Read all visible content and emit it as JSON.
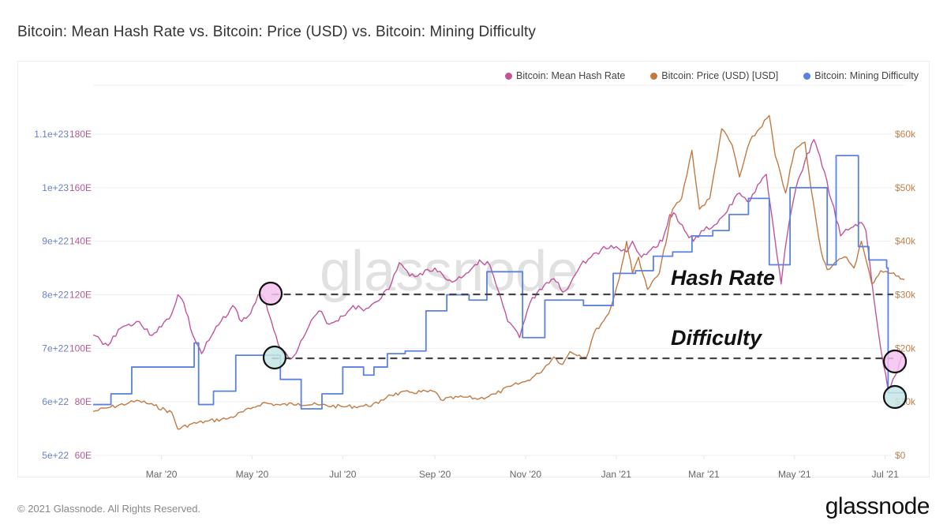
{
  "title": "Bitcoin: Mean Hash Rate vs. Bitcoin: Price (USD) vs. Bitcoin: Mining Difficulty",
  "legend": [
    {
      "label": "Bitcoin: Mean Hash Rate",
      "color": "#c2559a"
    },
    {
      "label": "Bitcoin: Price (USD) [USD]",
      "color": "#c27a43"
    },
    {
      "label": "Bitcoin: Mining Difficulty",
      "color": "#5a80e0"
    }
  ],
  "footer": "© 2021 Glassnode. All Rights Reserved.",
  "brand": "glassnode",
  "watermark": "glassnode",
  "chart_data": {
    "type": "line",
    "title": "Bitcoin: Mean Hash Rate vs. Bitcoin: Price (USD) vs. Bitcoin: Mining Difficulty",
    "x_range": [
      "2020-01-15",
      "2021-07-15"
    ],
    "x_ticks": [
      {
        "label": "Mar '20",
        "date": "2020-03-01"
      },
      {
        "label": "May '20",
        "date": "2020-05-01"
      },
      {
        "label": "Jul '20",
        "date": "2020-07-01"
      },
      {
        "label": "Sep '20",
        "date": "2020-09-01"
      },
      {
        "label": "Nov '20",
        "date": "2020-11-01"
      },
      {
        "label": "Jan '21",
        "date": "2021-01-01"
      },
      {
        "label": "Mar '21",
        "date": "2021-03-01"
      },
      {
        "label": "May '21",
        "date": "2021-05-01"
      },
      {
        "label": "Jul '21",
        "date": "2021-07-01"
      }
    ],
    "y_left_hash": {
      "label": "Mean Hash Rate (EH/s)",
      "range": [
        60,
        180
      ],
      "ticks": [
        "60E",
        "80E",
        "100E",
        "120E",
        "140E",
        "160E",
        "180E"
      ]
    },
    "y_left_difficulty": {
      "label": "Mining Difficulty",
      "range": [
        5e+22,
        1.1e+23
      ],
      "ticks": [
        "5e+22",
        "6e+22",
        "7e+22",
        "8e+22",
        "9e+22",
        "1e+23",
        "1.1e+23"
      ]
    },
    "y_right_price": {
      "label": "Price (USD)",
      "range": [
        0,
        60000
      ],
      "ticks": [
        "$0",
        "$10k",
        "$20k",
        "$30k",
        "$40k",
        "$50k",
        "$60k"
      ]
    },
    "grid": true,
    "legend_position": "top-right",
    "series": [
      {
        "name": "Bitcoin: Mean Hash Rate",
        "axis": "hash",
        "color": "#c2559a",
        "unit": "EH/s",
        "points": [
          [
            "2020-01-15",
            105
          ],
          [
            "2020-01-20",
            103
          ],
          [
            "2020-01-25",
            101
          ],
          [
            "2020-02-01",
            107
          ],
          [
            "2020-02-08",
            109
          ],
          [
            "2020-02-15",
            110
          ],
          [
            "2020-02-22",
            105
          ],
          [
            "2020-03-01",
            108
          ],
          [
            "2020-03-08",
            113
          ],
          [
            "2020-03-12",
            120
          ],
          [
            "2020-03-16",
            117
          ],
          [
            "2020-03-22",
            105
          ],
          [
            "2020-03-28",
            98
          ],
          [
            "2020-04-02",
            103
          ],
          [
            "2020-04-10",
            110
          ],
          [
            "2020-04-18",
            116
          ],
          [
            "2020-04-24",
            110
          ],
          [
            "2020-04-30",
            113
          ],
          [
            "2020-05-05",
            120
          ],
          [
            "2020-05-10",
            118
          ],
          [
            "2020-05-14",
            110
          ],
          [
            "2020-05-20",
            100
          ],
          [
            "2020-05-26",
            96
          ],
          [
            "2020-06-01",
            100
          ],
          [
            "2020-06-08",
            108
          ],
          [
            "2020-06-15",
            114
          ],
          [
            "2020-06-22",
            109
          ],
          [
            "2020-07-01",
            112
          ],
          [
            "2020-07-08",
            116
          ],
          [
            "2020-07-15",
            114
          ],
          [
            "2020-07-22",
            117
          ],
          [
            "2020-08-01",
            122
          ],
          [
            "2020-08-08",
            132
          ],
          [
            "2020-08-15",
            127
          ],
          [
            "2020-08-22",
            128
          ],
          [
            "2020-09-01",
            130
          ],
          [
            "2020-09-08",
            126
          ],
          [
            "2020-09-14",
            125
          ],
          [
            "2020-09-22",
            128
          ],
          [
            "2020-10-01",
            133
          ],
          [
            "2020-10-08",
            131
          ],
          [
            "2020-10-12",
            124
          ],
          [
            "2020-10-20",
            110
          ],
          [
            "2020-10-28",
            104
          ],
          [
            "2020-11-04",
            117
          ],
          [
            "2020-11-12",
            122
          ],
          [
            "2020-11-20",
            126
          ],
          [
            "2020-11-26",
            121
          ],
          [
            "2020-12-01",
            124
          ],
          [
            "2020-12-08",
            131
          ],
          [
            "2020-12-15",
            134
          ],
          [
            "2020-12-22",
            137
          ],
          [
            "2021-01-01",
            138
          ],
          [
            "2021-01-08",
            136
          ],
          [
            "2021-01-12",
            140
          ],
          [
            "2021-01-18",
            134
          ],
          [
            "2021-01-26",
            138
          ],
          [
            "2021-02-01",
            140
          ],
          [
            "2021-02-06",
            150
          ],
          [
            "2021-02-10",
            150
          ],
          [
            "2021-02-16",
            144
          ],
          [
            "2021-02-22",
            140
          ],
          [
            "2021-03-01",
            144
          ],
          [
            "2021-03-08",
            146
          ],
          [
            "2021-03-15",
            150
          ],
          [
            "2021-03-25",
            158
          ],
          [
            "2021-04-01",
            155
          ],
          [
            "2021-04-08",
            162
          ],
          [
            "2021-04-12",
            165
          ],
          [
            "2021-04-18",
            140
          ],
          [
            "2021-04-22",
            124
          ],
          [
            "2021-04-26",
            142
          ],
          [
            "2021-05-02",
            160
          ],
          [
            "2021-05-08",
            170
          ],
          [
            "2021-05-14",
            178
          ],
          [
            "2021-05-18",
            172
          ],
          [
            "2021-05-26",
            155
          ],
          [
            "2021-06-01",
            142
          ],
          [
            "2021-06-08",
            145
          ],
          [
            "2021-06-14",
            147
          ],
          [
            "2021-06-18",
            144
          ],
          [
            "2021-06-22",
            125
          ],
          [
            "2021-06-28",
            100
          ],
          [
            "2021-07-03",
            84
          ],
          [
            "2021-07-08",
            90
          ],
          [
            "2021-07-12",
            97
          ],
          [
            "2021-07-14",
            98
          ]
        ]
      },
      {
        "name": "Bitcoin: Price (USD) [USD]",
        "axis": "price",
        "color": "#c27a43",
        "unit": "USD",
        "points": [
          [
            "2020-01-15",
            8200
          ],
          [
            "2020-01-25",
            8900
          ],
          [
            "2020-02-08",
            9800
          ],
          [
            "2020-02-15",
            10200
          ],
          [
            "2020-02-25",
            9300
          ],
          [
            "2020-03-08",
            8000
          ],
          [
            "2020-03-12",
            4900
          ],
          [
            "2020-03-20",
            5800
          ],
          [
            "2020-04-01",
            6400
          ],
          [
            "2020-04-15",
            6900
          ],
          [
            "2020-04-30",
            8700
          ],
          [
            "2020-05-08",
            9800
          ],
          [
            "2020-05-20",
            9400
          ],
          [
            "2020-06-01",
            9700
          ],
          [
            "2020-06-15",
            9400
          ],
          [
            "2020-07-01",
            9100
          ],
          [
            "2020-07-15",
            9200
          ],
          [
            "2020-07-25",
            9700
          ],
          [
            "2020-08-01",
            11300
          ],
          [
            "2020-08-15",
            11800
          ],
          [
            "2020-09-01",
            11900
          ],
          [
            "2020-09-05",
            10400
          ],
          [
            "2020-09-20",
            10900
          ],
          [
            "2020-10-01",
            10600
          ],
          [
            "2020-10-12",
            11500
          ],
          [
            "2020-10-22",
            12900
          ],
          [
            "2020-11-01",
            13800
          ],
          [
            "2020-11-10",
            15300
          ],
          [
            "2020-11-20",
            18400
          ],
          [
            "2020-11-26",
            17000
          ],
          [
            "2020-12-01",
            19400
          ],
          [
            "2020-12-12",
            18300
          ],
          [
            "2020-12-17",
            22800
          ],
          [
            "2020-12-27",
            26500
          ],
          [
            "2021-01-03",
            33000
          ],
          [
            "2021-01-08",
            40000
          ],
          [
            "2021-01-12",
            34000
          ],
          [
            "2021-01-16",
            37000
          ],
          [
            "2021-01-22",
            31000
          ],
          [
            "2021-01-30",
            34000
          ],
          [
            "2021-02-08",
            46000
          ],
          [
            "2021-02-14",
            48000
          ],
          [
            "2021-02-21",
            57000
          ],
          [
            "2021-02-26",
            46000
          ],
          [
            "2021-03-05",
            48000
          ],
          [
            "2021-03-13",
            61000
          ],
          [
            "2021-03-20",
            58000
          ],
          [
            "2021-03-25",
            52000
          ],
          [
            "2021-04-01",
            58700
          ],
          [
            "2021-04-14",
            63500
          ],
          [
            "2021-04-18",
            56000
          ],
          [
            "2021-04-25",
            49000
          ],
          [
            "2021-05-01",
            57000
          ],
          [
            "2021-05-08",
            58500
          ],
          [
            "2021-05-12",
            50000
          ],
          [
            "2021-05-19",
            38000
          ],
          [
            "2021-05-23",
            34700
          ],
          [
            "2021-05-28",
            36000
          ],
          [
            "2021-06-05",
            37000
          ],
          [
            "2021-06-10",
            35000
          ],
          [
            "2021-06-15",
            40000
          ],
          [
            "2021-06-22",
            32000
          ],
          [
            "2021-06-28",
            34500
          ],
          [
            "2021-07-05",
            34000
          ],
          [
            "2021-07-10",
            33500
          ],
          [
            "2021-07-14",
            32800
          ]
        ]
      },
      {
        "name": "Bitcoin: Mining Difficulty",
        "axis": "difficulty",
        "color": "#5a80e0",
        "unit": "",
        "steps": [
          [
            "2020-01-15",
            5.95e+22
          ],
          [
            "2020-01-27",
            6.15e+22
          ],
          [
            "2020-02-10",
            6.65e+22
          ],
          [
            "2020-03-09",
            6.65e+22
          ],
          [
            "2020-03-14",
            6.65e+22
          ],
          [
            "2020-03-23",
            7.1e+22
          ],
          [
            "2020-03-26",
            5.95e+22
          ],
          [
            "2020-04-05",
            6.2e+22
          ],
          [
            "2020-04-20",
            6.87e+22
          ],
          [
            "2020-05-06",
            6.87e+22
          ],
          [
            "2020-05-20",
            6.42e+22
          ],
          [
            "2020-06-03",
            5.87e+22
          ],
          [
            "2020-06-17",
            6.15e+22
          ],
          [
            "2020-07-01",
            6.65e+22
          ],
          [
            "2020-07-15",
            6.5e+22
          ],
          [
            "2020-07-22",
            6.65e+22
          ],
          [
            "2020-07-31",
            6.9e+22
          ],
          [
            "2020-08-12",
            6.95e+22
          ],
          [
            "2020-08-26",
            7.7e+22
          ],
          [
            "2020-09-09",
            8e+22
          ],
          [
            "2020-09-24",
            7.9e+22
          ],
          [
            "2020-10-06",
            8.43e+22
          ],
          [
            "2020-10-20",
            8.43e+22
          ],
          [
            "2020-10-30",
            7.2e+22
          ],
          [
            "2020-11-14",
            7.9e+22
          ],
          [
            "2020-11-28",
            7.9e+22
          ],
          [
            "2020-12-10",
            7.8e+22
          ],
          [
            "2020-12-30",
            8.4e+22
          ],
          [
            "2021-01-14",
            8.45e+22
          ],
          [
            "2021-01-26",
            8.72e+22
          ],
          [
            "2021-02-08",
            8.8e+22
          ],
          [
            "2021-02-21",
            9.1e+22
          ],
          [
            "2021-03-07",
            9.2e+22
          ],
          [
            "2021-03-18",
            9.5e+22
          ],
          [
            "2021-03-31",
            9.8e+22
          ],
          [
            "2021-04-14",
            8.56e+22
          ],
          [
            "2021-04-28",
            1e+23
          ],
          [
            "2021-05-12",
            1e+23
          ],
          [
            "2021-05-23",
            8.56e+22
          ],
          [
            "2021-05-29",
            1.06e+23
          ],
          [
            "2021-06-13",
            8.9e+22
          ],
          [
            "2021-06-20",
            8.65e+22
          ],
          [
            "2021-07-02",
            8.5e+22
          ],
          [
            "2021-07-03",
            6.17e+22
          ],
          [
            "2021-07-14",
            6.17e+22
          ]
        ]
      }
    ],
    "annotations": [
      {
        "text": "Hash Rate",
        "type": "label"
      },
      {
        "text": "Difficulty",
        "type": "label"
      },
      {
        "type": "dashed-reference",
        "series": "Bitcoin: Mean Hash Rate",
        "level": "~121E (May '20 peak)",
        "from": "2020-05-10",
        "to": "2021-07-14"
      },
      {
        "type": "dashed-reference",
        "series": "Bitcoin: Mining Difficulty",
        "level": "~6.87e22 (May '20)",
        "from": "2020-05-10",
        "to": "2021-07-14"
      },
      {
        "type": "circle-marker",
        "series": "Bitcoin: Mean Hash Rate",
        "date": "2020-05-10",
        "fill": "#f3c2ef"
      },
      {
        "type": "circle-marker",
        "series": "Bitcoin: Mining Difficulty",
        "date": "2020-05-10",
        "fill": "#c6e6e4"
      },
      {
        "type": "circle-marker",
        "series": "Bitcoin: Mean Hash Rate",
        "date": "2021-07-14",
        "fill": "#f3c2ef"
      },
      {
        "type": "circle-marker",
        "series": "Bitcoin: Mining Difficulty",
        "date": "2021-07-14",
        "fill": "#c6e6e4"
      }
    ]
  }
}
